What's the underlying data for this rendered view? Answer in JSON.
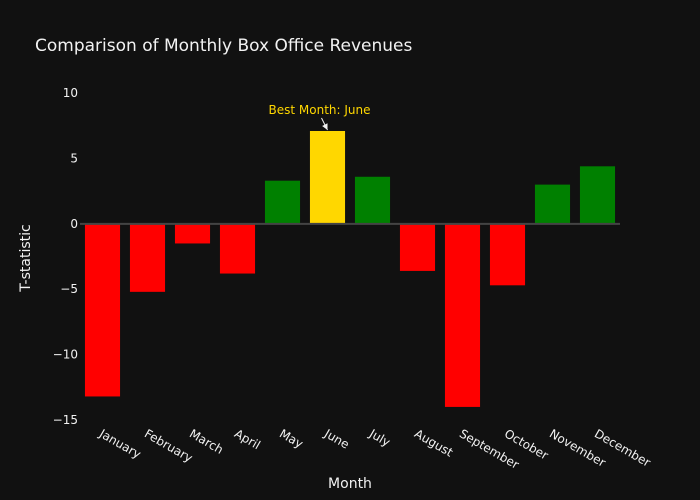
{
  "chart_data": {
    "type": "bar",
    "title": "Comparison of Monthly Box Office Revenues",
    "xlabel": "Month",
    "ylabel": "T-statistic",
    "categories": [
      "January",
      "February",
      "March",
      "April",
      "May",
      "June",
      "July",
      "August",
      "September",
      "October",
      "November",
      "December"
    ],
    "values": [
      -13.2,
      -5.2,
      -1.5,
      -3.8,
      3.3,
      7.1,
      3.6,
      -3.6,
      -14.0,
      -4.7,
      3.0,
      4.4
    ],
    "bar_colors": [
      "#FF0000",
      "#FF0000",
      "#FF0000",
      "#FF0000",
      "#008000",
      "#FFD700",
      "#008000",
      "#FF0000",
      "#FF0000",
      "#FF0000",
      "#008000",
      "#008000"
    ],
    "ylim": [
      -15,
      11
    ],
    "yticks": [
      10,
      5,
      0,
      -5,
      -10,
      -15
    ],
    "ytick_labels": [
      "10",
      "5",
      "0",
      "−5",
      "−10",
      "−15"
    ],
    "annotation": {
      "text": "Best Month: June",
      "category": "June",
      "value": 7.1,
      "color": "#FFD700"
    },
    "background": "#111111",
    "legend": "none",
    "grid": false
  }
}
